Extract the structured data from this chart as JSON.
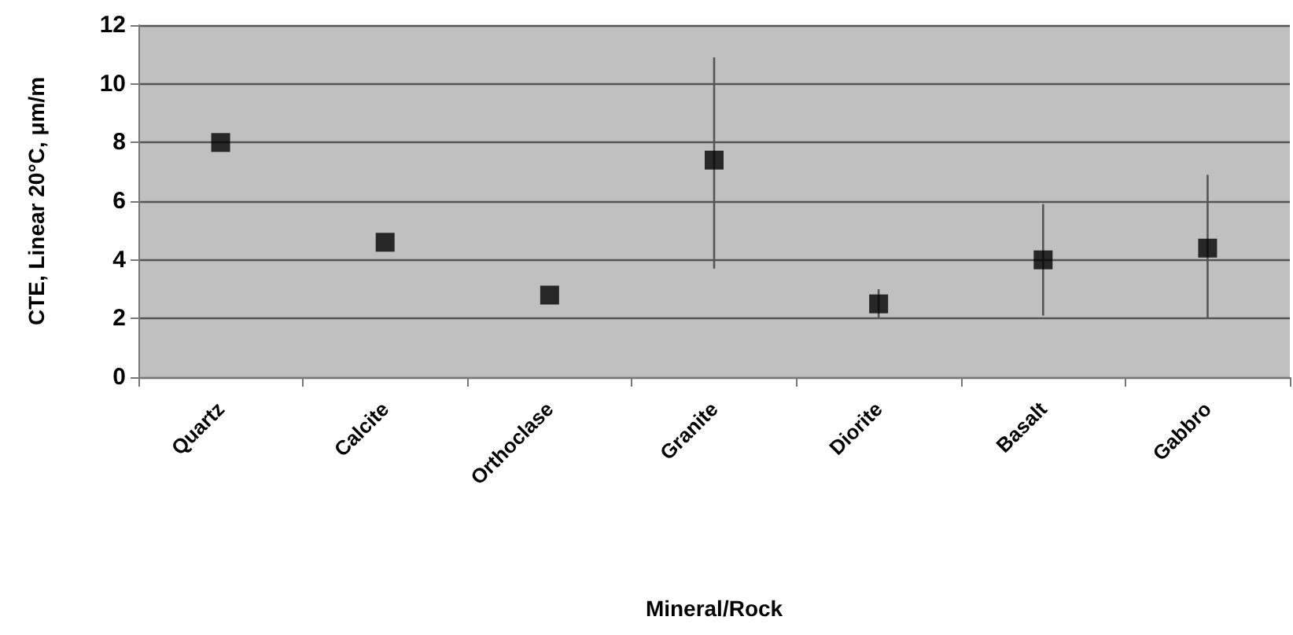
{
  "chart_data": {
    "type": "scatter",
    "xlabel": "Mineral/Rock",
    "ylabel": "CTE, Linear 20°C, μm/m",
    "categories": [
      "Quartz",
      "Calcite",
      "Orthoclase",
      "Granite",
      "Diorite",
      "Basalt",
      "Gabbro"
    ],
    "values": [
      8.0,
      4.6,
      2.8,
      7.4,
      2.5,
      4.0,
      4.4
    ],
    "errors": [
      null,
      null,
      null,
      [
        3.7,
        10.9
      ],
      [
        2.0,
        3.0
      ],
      [
        2.1,
        5.9
      ],
      [
        2.0,
        6.9
      ]
    ],
    "color": "#000000",
    "marker": "square",
    "ylim": [
      0,
      12
    ],
    "yticks": [
      0,
      2,
      4,
      6,
      8,
      10,
      12
    ],
    "grid": "y"
  }
}
